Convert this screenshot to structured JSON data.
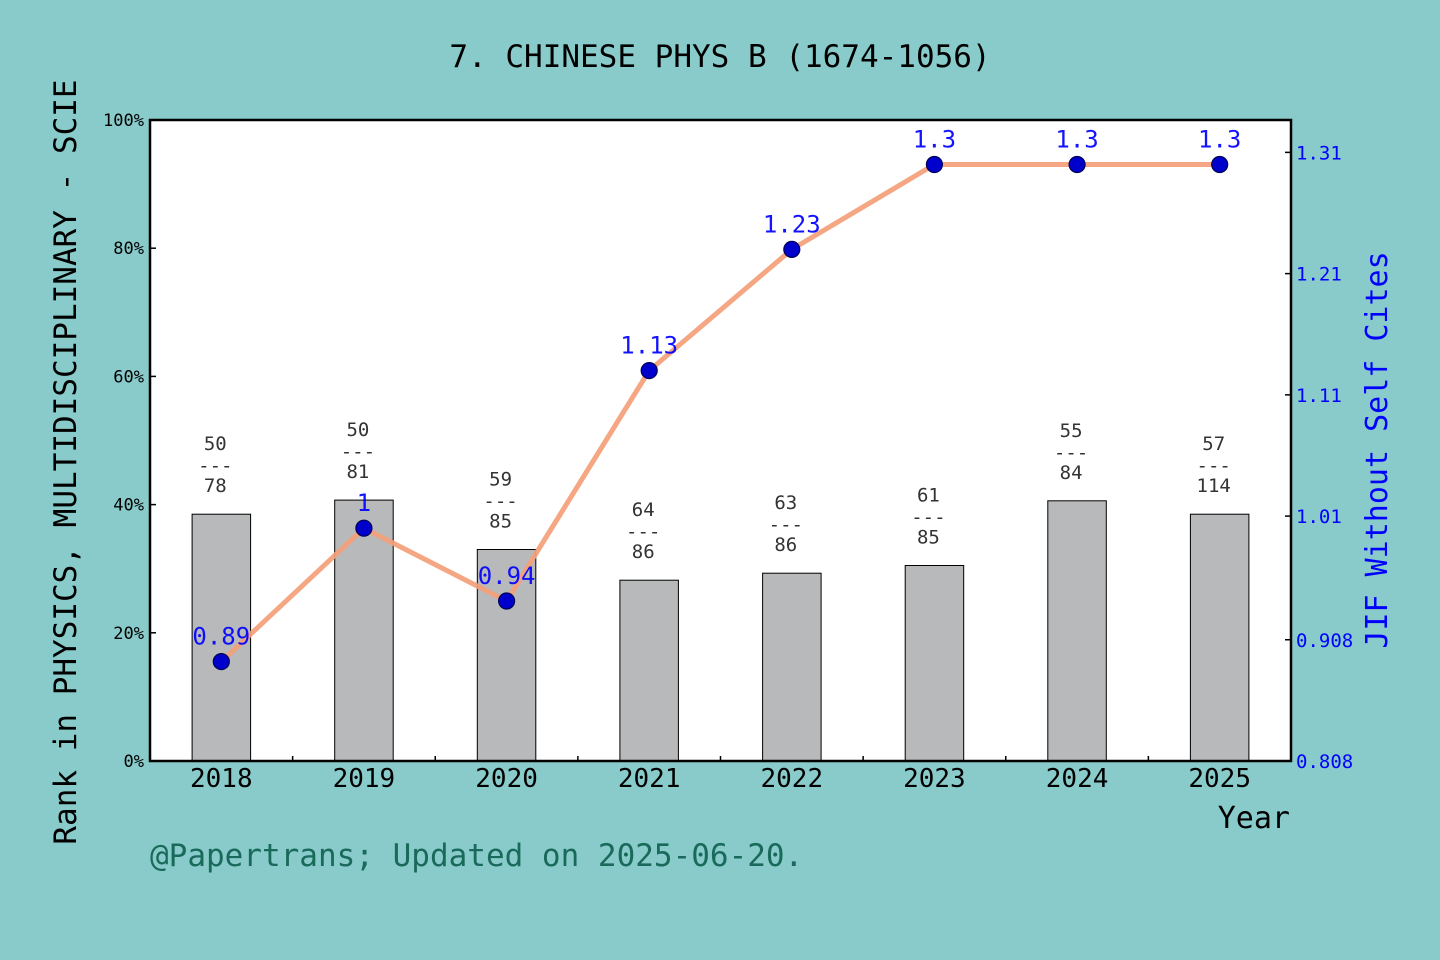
{
  "chart_data": {
    "type": "bar",
    "title": "7. CHINESE PHYS B (1674-1056)",
    "xlabel": "Year",
    "ylabel": "Rank in PHYSICS, MULTIDISCIPLINARY - SCIE",
    "ylabel_right": "JIF Without Self Cites",
    "footer": "@Papertrans; Updated on 2025-06-20.",
    "categories": [
      "2018",
      "2019",
      "2020",
      "2021",
      "2022",
      "2023",
      "2024",
      "2025"
    ],
    "y_left": {
      "range": [
        0,
        100
      ],
      "ticks": [
        0,
        20,
        40,
        60,
        80,
        100
      ],
      "tick_labels": [
        "0%",
        "20%",
        "40%",
        "60%",
        "80%",
        "100%"
      ]
    },
    "y_right": {
      "range": [
        0.808,
        1.3367
      ],
      "ticks": [
        0.808,
        0.908,
        1.01,
        1.11,
        1.21,
        1.31
      ],
      "tick_labels": [
        "0.808",
        "0.908",
        "1.01",
        "1.11",
        "1.21",
        "1.31"
      ]
    },
    "series": [
      {
        "type": "bar",
        "values": [
          38.5,
          40.7,
          33.0,
          28.2,
          29.3,
          30.5,
          40.6,
          38.5
        ],
        "rank_labels": [
          {
            "rank": "50",
            "sep": "---",
            "total": "78"
          },
          {
            "rank": "50",
            "sep": "---",
            "total": "81"
          },
          {
            "rank": "59",
            "sep": "---",
            "total": "85"
          },
          {
            "rank": "64",
            "sep": "---",
            "total": "86"
          },
          {
            "rank": "63",
            "sep": "---",
            "total": "86"
          },
          {
            "rank": "61",
            "sep": "---",
            "total": "85"
          },
          {
            "rank": "55",
            "sep": "---",
            "total": "84"
          },
          {
            "rank": "57",
            "sep": "---",
            "total": "114"
          }
        ]
      },
      {
        "type": "line",
        "axis": "right",
        "values": [
          0.89,
          1.0,
          0.94,
          1.13,
          1.23,
          1.3,
          1.3,
          1.3
        ],
        "labels": [
          "0.89",
          "1",
          "0.94",
          "1.13",
          "1.23",
          "1.3",
          "1.3",
          "1.3"
        ]
      }
    ],
    "colors": {
      "background": "#88cbca",
      "plot_area": "#ffffff",
      "bar": "#b8b9bb",
      "line": "#f4a07a",
      "marker": "#0000cc",
      "right_axis": "#0000ff",
      "footer": "#1a6a5c",
      "rank_label": "#333333"
    },
    "grid": false,
    "legend": "none"
  }
}
